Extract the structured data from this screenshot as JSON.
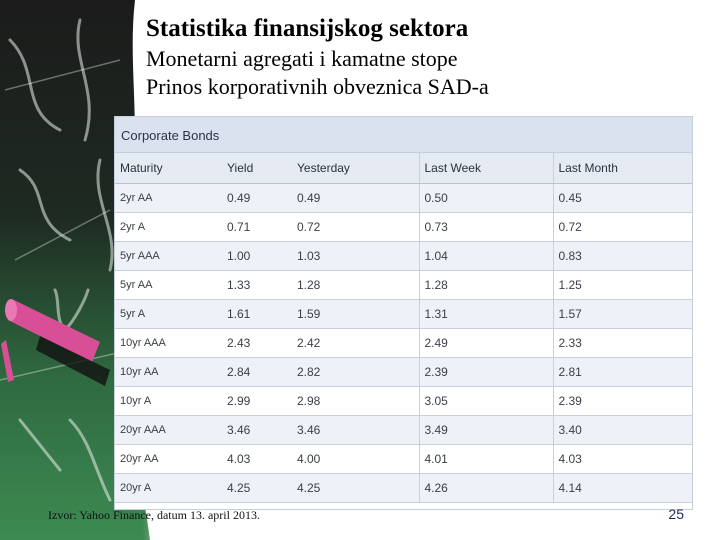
{
  "slide": {
    "title": "Statistika finansijskog sektora",
    "subtitle1": "Monetarni agregati i kamatne stope",
    "subtitle2": "Prinos korporativnih obveznica SAD-a",
    "source": "Izvor: Yahoo Finance, datum 13. april 2013.",
    "page_number": "25"
  },
  "table": {
    "title": "Corporate Bonds",
    "columns": [
      "Maturity",
      "Yield",
      "Yesterday",
      "Last Week",
      "Last Month"
    ],
    "rows": [
      [
        "2yr AA",
        "0.49",
        "0.49",
        "0.50",
        "0.45"
      ],
      [
        "2yr A",
        "0.71",
        "0.72",
        "0.73",
        "0.72"
      ],
      [
        "5yr AAA",
        "1.00",
        "1.03",
        "1.04",
        "0.83"
      ],
      [
        "5yr AA",
        "1.33",
        "1.28",
        "1.28",
        "1.25"
      ],
      [
        "5yr A",
        "1.61",
        "1.59",
        "1.31",
        "1.57"
      ],
      [
        "10yr AAA",
        "2.43",
        "2.42",
        "2.49",
        "2.33"
      ],
      [
        "10yr AA",
        "2.84",
        "2.82",
        "2.39",
        "2.81"
      ],
      [
        "10yr A",
        "2.99",
        "2.98",
        "3.05",
        "2.39"
      ],
      [
        "20yr AAA",
        "3.46",
        "3.46",
        "3.49",
        "3.40"
      ],
      [
        "20yr AA",
        "4.03",
        "4.00",
        "4.01",
        "4.03"
      ],
      [
        "20yr A",
        "4.25",
        "4.25",
        "4.26",
        "4.14"
      ]
    ]
  },
  "colors": {
    "board": "#1f3a2a",
    "chalk_pink": "#d94f97",
    "header_bg": "#dbe2ef",
    "row_alt": "#eef1f7"
  }
}
